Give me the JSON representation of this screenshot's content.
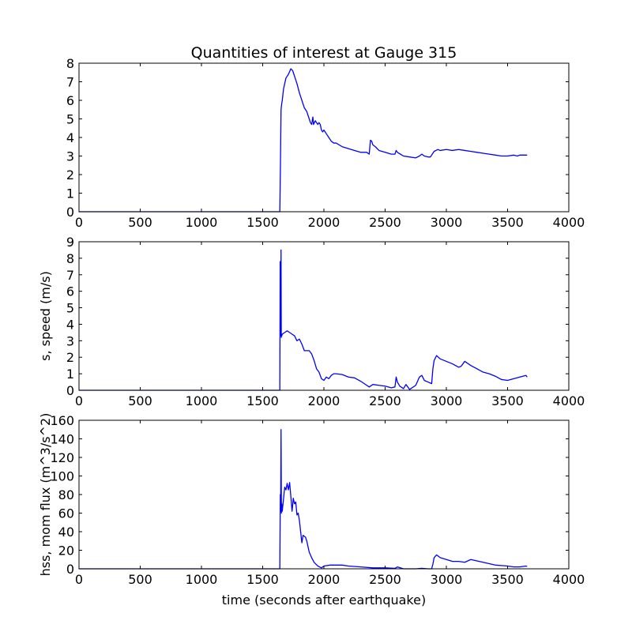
{
  "figure": {
    "title": "Quantities of interest at Gauge 315"
  },
  "chart_data": [
    {
      "type": "line",
      "title": "Quantities of interest at Gauge 315",
      "xlabel": "",
      "ylabel": "",
      "xlim": [
        0,
        4000
      ],
      "ylim": [
        0,
        8
      ],
      "xticks": [
        0,
        500,
        1000,
        1500,
        2000,
        2500,
        3000,
        3500,
        4000
      ],
      "yticks": [
        0,
        1,
        2,
        3,
        4,
        5,
        6,
        7,
        8
      ],
      "grid": false,
      "color": "#0000ff",
      "series": [
        {
          "x": [
            0,
            1500,
            1640,
            1645,
            1650,
            1655,
            1660,
            1670,
            1690,
            1710,
            1730,
            1745,
            1750,
            1760,
            1780,
            1800,
            1820,
            1840,
            1860,
            1880,
            1890,
            1900,
            1910,
            1915,
            1930,
            1950,
            1960,
            1970,
            1980,
            1990,
            2000,
            2020,
            2040,
            2060,
            2080,
            2100,
            2150,
            2200,
            2250,
            2300,
            2350,
            2370,
            2380,
            2390,
            2400,
            2420,
            2450,
            2500,
            2550,
            2580,
            2590,
            2600,
            2650,
            2700,
            2750,
            2780,
            2800,
            2820,
            2850,
            2870,
            2900,
            2930,
            2950,
            3000,
            3050,
            3100,
            3150,
            3200,
            3250,
            3300,
            3350,
            3400,
            3450,
            3500,
            3550,
            3580,
            3600,
            3650,
            3660
          ],
          "y": [
            0,
            0,
            0,
            2.5,
            5.5,
            5.8,
            6.0,
            6.6,
            7.2,
            7.4,
            7.7,
            7.6,
            7.5,
            7.3,
            6.9,
            6.4,
            6.0,
            5.6,
            5.4,
            5.0,
            4.8,
            4.7,
            5.1,
            4.7,
            4.9,
            4.7,
            4.8,
            4.7,
            4.4,
            4.3,
            4.4,
            4.2,
            4.0,
            3.8,
            3.7,
            3.7,
            3.5,
            3.4,
            3.3,
            3.2,
            3.2,
            3.1,
            3.85,
            3.8,
            3.6,
            3.5,
            3.3,
            3.2,
            3.1,
            3.1,
            3.3,
            3.2,
            3.0,
            2.95,
            2.9,
            3.0,
            3.1,
            3.0,
            2.95,
            2.95,
            3.25,
            3.35,
            3.3,
            3.35,
            3.3,
            3.35,
            3.3,
            3.25,
            3.2,
            3.15,
            3.1,
            3.05,
            3.0,
            3.0,
            3.05,
            3.0,
            3.05,
            3.05,
            3.05
          ]
        }
      ]
    },
    {
      "type": "line",
      "title": "",
      "xlabel": "",
      "ylabel": "s, speed (m/s)",
      "xlim": [
        0,
        4000
      ],
      "ylim": [
        0,
        9
      ],
      "xticks": [
        0,
        500,
        1000,
        1500,
        2000,
        2500,
        3000,
        3500,
        4000
      ],
      "yticks": [
        0,
        1,
        2,
        3,
        4,
        5,
        6,
        7,
        8,
        9
      ],
      "grid": false,
      "color": "#0000ff",
      "series": [
        {
          "x": [
            0,
            1500,
            1640,
            1643,
            1646,
            1648,
            1650,
            1652,
            1654,
            1656,
            1660,
            1680,
            1700,
            1720,
            1740,
            1760,
            1780,
            1800,
            1820,
            1840,
            1860,
            1880,
            1900,
            1920,
            1940,
            1960,
            1980,
            2000,
            2020,
            2040,
            2060,
            2080,
            2100,
            2150,
            2200,
            2250,
            2300,
            2350,
            2370,
            2400,
            2450,
            2500,
            2550,
            2580,
            2590,
            2600,
            2620,
            2650,
            2670,
            2700,
            2750,
            2780,
            2800,
            2820,
            2850,
            2880,
            2890,
            2900,
            2920,
            2950,
            3000,
            3050,
            3100,
            3120,
            3150,
            3200,
            3250,
            3300,
            3350,
            3400,
            3450,
            3500,
            3550,
            3600,
            3650,
            3660
          ],
          "y": [
            0,
            0,
            0,
            7.8,
            4.5,
            3.3,
            8.5,
            3.2,
            3.4,
            3.3,
            3.4,
            3.5,
            3.6,
            3.5,
            3.4,
            3.3,
            3.0,
            3.1,
            2.8,
            2.4,
            2.4,
            2.4,
            2.2,
            1.8,
            1.3,
            1.1,
            0.7,
            0.6,
            0.8,
            0.7,
            0.9,
            1.0,
            1.0,
            0.95,
            0.8,
            0.75,
            0.55,
            0.3,
            0.2,
            0.35,
            0.3,
            0.25,
            0.15,
            0.2,
            0.8,
            0.5,
            0.25,
            0.1,
            0.35,
            0.05,
            0.3,
            0.8,
            0.9,
            0.6,
            0.5,
            0.4,
            1.3,
            1.8,
            2.1,
            1.9,
            1.75,
            1.6,
            1.4,
            1.45,
            1.75,
            1.5,
            1.3,
            1.1,
            1.0,
            0.85,
            0.65,
            0.6,
            0.7,
            0.8,
            0.9,
            0.8
          ]
        }
      ]
    },
    {
      "type": "line",
      "title": "",
      "xlabel": "time (seconds after earthquake)",
      "ylabel": "hss, mom flux (m^3/s^2)",
      "xlim": [
        0,
        4000
      ],
      "ylim": [
        0,
        160
      ],
      "xticks": [
        0,
        500,
        1000,
        1500,
        2000,
        2500,
        3000,
        3500,
        4000
      ],
      "yticks": [
        0,
        20,
        40,
        60,
        80,
        100,
        120,
        140,
        160
      ],
      "grid": false,
      "color": "#0000ff",
      "series": [
        {
          "x": [
            0,
            1500,
            1640,
            1644,
            1647,
            1650,
            1653,
            1656,
            1660,
            1670,
            1680,
            1690,
            1700,
            1710,
            1720,
            1730,
            1740,
            1750,
            1760,
            1770,
            1780,
            1790,
            1800,
            1810,
            1820,
            1830,
            1840,
            1850,
            1860,
            1880,
            1900,
            1920,
            1950,
            1980,
            2000,
            2050,
            2100,
            2150,
            2200,
            2300,
            2400,
            2500,
            2580,
            2600,
            2650,
            2700,
            2750,
            2800,
            2850,
            2880,
            2890,
            2900,
            2920,
            2950,
            3000,
            3050,
            3100,
            3150,
            3200,
            3300,
            3400,
            3500,
            3550,
            3600,
            3650,
            3660
          ],
          "y": [
            0,
            0,
            0,
            80,
            62,
            150,
            60,
            70,
            62,
            75,
            88,
            85,
            92,
            85,
            93,
            78,
            62,
            76,
            70,
            72,
            58,
            60,
            52,
            40,
            28,
            36,
            35,
            34,
            30,
            18,
            12,
            7,
            3,
            1,
            3,
            4,
            4,
            4,
            3,
            2,
            1,
            1,
            0.5,
            2,
            0,
            0,
            0,
            0.5,
            0,
            0,
            5,
            12,
            15,
            12,
            10,
            8,
            8,
            7,
            10,
            7,
            4,
            3,
            2,
            2,
            3,
            2.5
          ]
        }
      ]
    }
  ]
}
